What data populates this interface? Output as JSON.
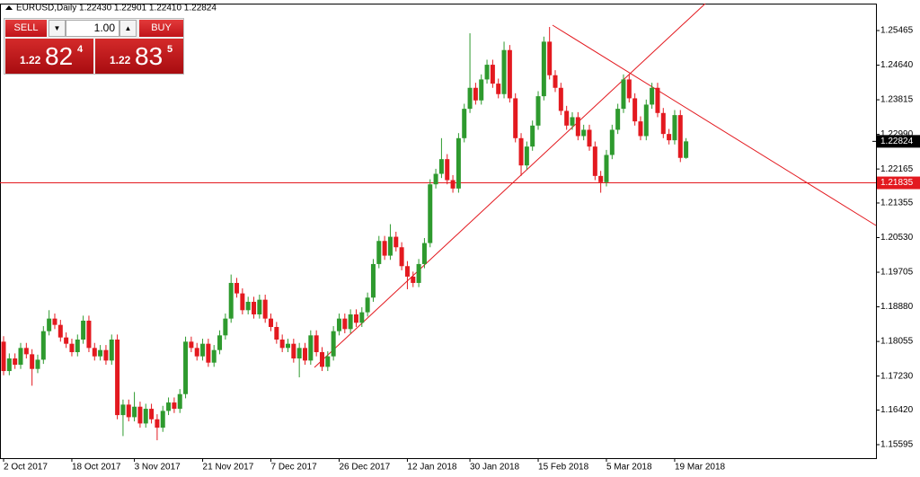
{
  "chart_data": {
    "type": "candlestick",
    "title": "EURUSD,Daily  1.22430 1.22901 1.22410 1.22824",
    "up_color": "#2e9a2e",
    "down_color": "#e3191f",
    "ylim": [
      1.15274,
      1.26086
    ],
    "yticks": [
      1.25465,
      {
        "value": 1.2464,
        "label": "1.24640"
      },
      1.23815,
      {
        "value": 1.2299,
        "label": "1.22990"
      },
      1.22165,
      1.21355,
      {
        "value": 1.2053,
        "label": "1.20530"
      },
      1.19705,
      {
        "value": 1.1888,
        "label": "1.18880"
      },
      1.18055,
      {
        "value": 1.1723,
        "label": "1.17230"
      },
      {
        "value": 1.1642,
        "label": "1.16420"
      },
      1.15595
    ],
    "hline": {
      "value": 1.21835,
      "label": "1.21835",
      "color": "#e3191f"
    },
    "last_price": {
      "value": 1.22824,
      "label": "1.22824"
    },
    "categories": [
      "2 Oct 2017",
      null,
      null,
      null,
      null,
      null,
      null,
      null,
      null,
      null,
      null,
      null,
      "18 Oct 2017",
      null,
      null,
      null,
      null,
      null,
      null,
      null,
      null,
      null,
      null,
      "3 Nov 2017",
      null,
      null,
      null,
      null,
      null,
      null,
      null,
      null,
      null,
      null,
      null,
      "21 Nov 2017",
      null,
      null,
      null,
      null,
      null,
      null,
      null,
      null,
      null,
      null,
      null,
      "7 Dec 2017",
      null,
      null,
      null,
      null,
      null,
      null,
      null,
      null,
      null,
      null,
      null,
      "26 Dec 2017",
      null,
      null,
      null,
      null,
      null,
      null,
      null,
      null,
      null,
      null,
      null,
      "12 Jan 2018",
      null,
      null,
      null,
      null,
      null,
      null,
      null,
      null,
      null,
      null,
      "30 Jan 2018",
      null,
      null,
      null,
      null,
      null,
      null,
      null,
      null,
      null,
      null,
      null,
      "15 Feb 2018",
      null,
      null,
      null,
      null,
      null,
      null,
      null,
      null,
      null,
      null,
      null,
      "5 Mar 2018",
      null,
      null,
      null,
      null,
      null,
      null,
      null,
      null,
      null,
      null,
      null,
      "19 Mar 2018",
      null,
      null
    ],
    "open": [
      1.1805,
      1.1735,
      1.1765,
      1.175,
      1.179,
      1.1775,
      1.174,
      1.1762,
      1.183,
      1.186,
      1.1845,
      1.1815,
      1.18,
      1.178,
      1.181,
      1.1855,
      1.179,
      1.177,
      1.1785,
      1.176,
      1.181,
      1.163,
      1.1655,
      1.1625,
      1.165,
      1.161,
      1.1645,
      1.162,
      1.16,
      1.164,
      1.166,
      1.1645,
      1.168,
      1.1805,
      1.179,
      1.177,
      1.18,
      1.1755,
      1.1785,
      1.182,
      1.186,
      1.1945,
      1.192,
      1.188,
      1.19,
      1.187,
      1.1905,
      1.186,
      1.184,
      1.181,
      1.179,
      1.18,
      1.1765,
      1.179,
      1.176,
      1.182,
      1.178,
      1.1745,
      1.177,
      1.183,
      1.186,
      1.1835,
      1.187,
      1.185,
      1.1875,
      1.191,
      1.199,
      1.2045,
      1.201,
      1.2055,
      1.203,
      1.1985,
      1.196,
      1.1945,
      1.199,
      1.204,
      1.218,
      1.2205,
      1.224,
      1.219,
      1.217,
      1.229,
      1.236,
      1.241,
      1.238,
      1.243,
      1.2465,
      1.242,
      1.2395,
      1.25,
      1.2385,
      1.229,
      1.2225,
      1.227,
      1.232,
      1.239,
      1.252,
      1.244,
      1.241,
      1.2355,
      1.232,
      1.234,
      1.2295,
      1.231,
      1.227,
      1.22,
      1.2185,
      1.225,
      1.231,
      1.236,
      1.243,
      1.2385,
      1.233,
      1.2295,
      1.237,
      1.241,
      1.235,
      1.23,
      1.2285,
      1.2345,
      1.2243
    ],
    "high": [
      1.1818,
      1.1777,
      1.1777,
      1.1802,
      1.1802,
      1.1787,
      1.1774,
      1.1842,
      1.188,
      1.1872,
      1.1857,
      1.1827,
      1.1812,
      1.1822,
      1.1867,
      1.1867,
      1.1802,
      1.1797,
      1.1797,
      1.1822,
      1.1822,
      1.1667,
      1.1667,
      1.1685,
      1.1662,
      1.1657,
      1.1657,
      1.1632,
      1.1652,
      1.1672,
      1.1672,
      1.1692,
      1.1817,
      1.1817,
      1.1802,
      1.1812,
      1.1812,
      1.1797,
      1.1832,
      1.1872,
      1.1965,
      1.1957,
      1.1932,
      1.1912,
      1.1912,
      1.1917,
      1.1917,
      1.1872,
      1.1852,
      1.1822,
      1.1812,
      1.1812,
      1.1802,
      1.1802,
      1.1832,
      1.1832,
      1.1792,
      1.1782,
      1.1842,
      1.1872,
      1.1872,
      1.1882,
      1.1882,
      1.1887,
      1.1922,
      1.2002,
      1.2057,
      1.2057,
      1.2085,
      1.2067,
      1.2042,
      1.1997,
      1.1972,
      1.2002,
      1.2052,
      1.2192,
      1.2217,
      1.229,
      1.2252,
      1.2202,
      1.2302,
      1.2372,
      1.254,
      1.2422,
      1.2442,
      1.2477,
      1.2477,
      1.2432,
      1.252,
      1.2512,
      1.2397,
      1.2302,
      1.2282,
      1.2332,
      1.2402,
      1.2532,
      1.2555,
      1.2452,
      1.2422,
      1.2367,
      1.2352,
      1.2352,
      1.2322,
      1.2322,
      1.2282,
      1.2212,
      1.2262,
      1.2322,
      1.2372,
      1.2442,
      1.2442,
      1.2397,
      1.2342,
      1.2382,
      1.2422,
      1.2422,
      1.2362,
      1.2312,
      1.2357,
      1.2357,
      1.22901
    ],
    "low": [
      1.1725,
      1.1725,
      1.174,
      1.174,
      1.1765,
      1.17,
      1.173,
      1.1752,
      1.182,
      1.1835,
      1.1805,
      1.179,
      1.177,
      1.177,
      1.18,
      1.178,
      1.176,
      1.176,
      1.175,
      1.175,
      1.162,
      1.158,
      1.1615,
      1.1615,
      1.16,
      1.16,
      1.161,
      1.157,
      1.159,
      1.163,
      1.1635,
      1.1635,
      1.167,
      1.178,
      1.176,
      1.176,
      1.1745,
      1.1745,
      1.1775,
      1.181,
      1.185,
      1.191,
      1.187,
      1.187,
      1.186,
      1.186,
      1.185,
      1.183,
      1.18,
      1.178,
      1.178,
      1.1755,
      1.172,
      1.175,
      1.175,
      1.177,
      1.1735,
      1.1735,
      1.176,
      1.182,
      1.1825,
      1.1825,
      1.184,
      1.184,
      1.1865,
      1.19,
      1.198,
      1.2,
      1.2,
      1.202,
      1.1975,
      1.193,
      1.1935,
      1.1935,
      1.198,
      1.203,
      1.217,
      1.2195,
      1.218,
      1.216,
      1.216,
      1.228,
      1.235,
      1.237,
      1.237,
      1.242,
      1.241,
      1.2385,
      1.2385,
      1.2375,
      1.228,
      1.22,
      1.2215,
      1.226,
      1.231,
      1.238,
      1.243,
      1.24,
      1.2345,
      1.231,
      1.231,
      1.2285,
      1.2285,
      1.226,
      1.219,
      1.216,
      1.2175,
      1.224,
      1.23,
      1.235,
      1.2375,
      1.232,
      1.2285,
      1.2285,
      1.236,
      1.234,
      1.229,
      1.2275,
      1.2275,
      1.2233,
      1.2241
    ],
    "close": [
      1.1735,
      1.1765,
      1.175,
      1.179,
      1.1775,
      1.174,
      1.1762,
      1.183,
      1.186,
      1.1845,
      1.1815,
      1.18,
      1.178,
      1.181,
      1.1855,
      1.179,
      1.177,
      1.1785,
      1.176,
      1.181,
      1.163,
      1.1655,
      1.1625,
      1.165,
      1.161,
      1.1645,
      1.162,
      1.16,
      1.164,
      1.166,
      1.1645,
      1.168,
      1.1805,
      1.179,
      1.177,
      1.18,
      1.1755,
      1.1785,
      1.182,
      1.186,
      1.1945,
      1.192,
      1.188,
      1.19,
      1.187,
      1.1905,
      1.186,
      1.184,
      1.181,
      1.179,
      1.18,
      1.1765,
      1.179,
      1.176,
      1.182,
      1.178,
      1.1745,
      1.177,
      1.183,
      1.186,
      1.1835,
      1.187,
      1.185,
      1.1875,
      1.191,
      1.199,
      1.2045,
      1.201,
      1.2055,
      1.203,
      1.1985,
      1.196,
      1.1945,
      1.199,
      1.204,
      1.218,
      1.2205,
      1.224,
      1.219,
      1.217,
      1.229,
      1.236,
      1.241,
      1.238,
      1.243,
      1.2465,
      1.242,
      1.2395,
      1.25,
      1.2385,
      1.229,
      1.2225,
      1.227,
      1.232,
      1.239,
      1.252,
      1.244,
      1.241,
      1.2355,
      1.232,
      1.234,
      1.2295,
      1.231,
      1.227,
      1.22,
      1.2185,
      1.225,
      1.231,
      1.236,
      1.243,
      1.2385,
      1.233,
      1.2295,
      1.237,
      1.241,
      1.235,
      1.23,
      1.2285,
      1.2345,
      1.2243,
      1.22824
    ]
  },
  "trade_panel": {
    "sell": "SELL",
    "buy": "BUY",
    "lot": "1.00",
    "bid": {
      "prefix": "1.22",
      "big": "82",
      "small": "4"
    },
    "ask": {
      "prefix": "1.22",
      "big": "83",
      "small": "5"
    }
  }
}
